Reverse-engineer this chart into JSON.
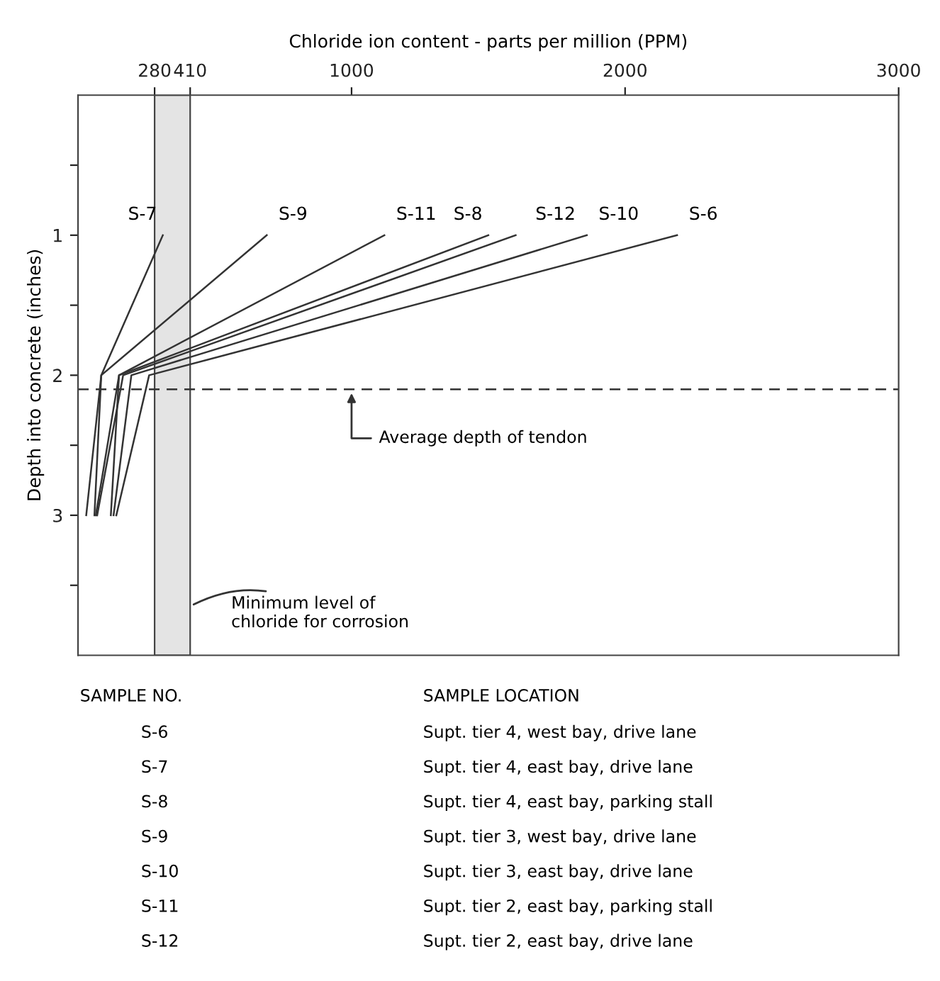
{
  "chart_data": {
    "type": "line",
    "xlabel": "Chloride ion content - parts per million (PPM)",
    "ylabel": "Depth into concrete (inches)",
    "xlim": [
      0,
      3000
    ],
    "ylim": [
      4,
      0
    ],
    "xticks": [
      280,
      410,
      1000,
      2000,
      3000
    ],
    "yticks": [
      {
        "value": 0.5,
        "label": null
      },
      1,
      {
        "value": 1.5,
        "label": null
      },
      2,
      {
        "value": 2.5,
        "label": null
      },
      3,
      {
        "value": 3.5,
        "label": null
      }
    ],
    "grid": false,
    "legend": false,
    "marker": "none",
    "line_style": "solid",
    "series": [
      {
        "name": "S-7",
        "color": "#333333",
        "x": [
          310,
          85,
          30
        ],
        "values": [
          1,
          2,
          3
        ]
      },
      {
        "name": "S-9",
        "color": "#333333",
        "x": [
          690,
          85,
          60
        ],
        "values": [
          1,
          2,
          3
        ]
      },
      {
        "name": "S-11",
        "color": "#333333",
        "x": [
          1120,
          150,
          65
        ],
        "values": [
          1,
          2,
          3
        ]
      },
      {
        "name": "S-8",
        "color": "#333333",
        "x": [
          1500,
          150,
          120
        ],
        "values": [
          1,
          2,
          3
        ]
      },
      {
        "name": "S-12",
        "color": "#333333",
        "x": [
          1600,
          165,
          70
        ],
        "values": [
          1,
          2,
          3
        ]
      },
      {
        "name": "S-10",
        "color": "#333333",
        "x": [
          1860,
          195,
          130
        ],
        "values": [
          1,
          2,
          3
        ]
      },
      {
        "name": "S-6",
        "color": "#333333",
        "x": [
          2190,
          260,
          140
        ],
        "values": [
          1,
          2,
          3
        ]
      }
    ],
    "ref_lines": [
      {
        "axis": "y",
        "value": 2.1,
        "label": "Average depth of tendon",
        "color": "#333333",
        "line_style": "dashed"
      }
    ],
    "bands": [
      {
        "axis": "x",
        "from": 280,
        "to": 410,
        "label": "Minimum level of\nchloride for corrosion",
        "color": "#e4e4e4"
      }
    ],
    "annotations": [
      "SAMPLE NO.",
      "SAMPLE LOCATION",
      "S-6",
      "Supt. tier 4, west bay, drive lane",
      "S-7",
      "Supt. tier 4, east bay, drive lane",
      "S-8",
      "Supt. tier 4, east bay, parking stall",
      "S-9",
      "Supt. tier 3, west bay, drive lane",
      "S-10",
      "Supt. tier 3, east bay, drive lane",
      "S-11",
      "Supt. tier 2, east bay, parking stall",
      "S-12",
      "Supt. tier 2, east bay, drive lane"
    ]
  }
}
